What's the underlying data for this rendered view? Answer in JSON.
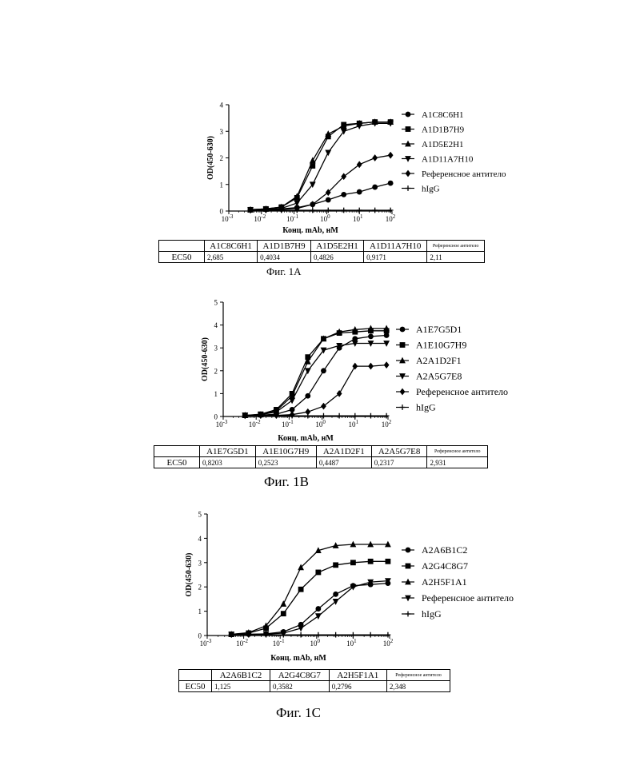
{
  "figures": [
    {
      "caption": "Фиг. 1A",
      "table": {
        "row_label": "EC50",
        "columns": [
          "A1C8C6H1",
          "A1D1B7H9",
          "A1D5E2H1",
          "A1D11A7H10",
          "Референсное антитело"
        ],
        "values": [
          "2,685",
          "0,4034",
          "0,4826",
          "0,9171",
          "2,11"
        ]
      }
    },
    {
      "caption": "Фиг. 1B",
      "table": {
        "row_label": "EC50",
        "columns": [
          "A1E7G5D1",
          "A1E10G7H9",
          "A2A1D2F1",
          "A2A5G7E8",
          "Референсное антитело"
        ],
        "values": [
          "0,8203",
          "0,2523",
          "0,4487",
          "0,2317",
          "2,931"
        ]
      }
    },
    {
      "caption": "Фиг. 1C",
      "table": {
        "row_label": "EC50",
        "columns": [
          "A2A6B1C2",
          "A2G4C8G7",
          "A2H5F1A1",
          "Референсное антитело"
        ],
        "values": [
          "1,125",
          "0,3582",
          "0,2796",
          "2,348"
        ]
      }
    }
  ],
  "chart_data": [
    {
      "type": "scatter",
      "xlabel": "Конц. mAb, нМ",
      "ylabel": "OD(450-630)",
      "xscale": "log",
      "xlim": [
        0.001,
        100
      ],
      "ylim": [
        0,
        4
      ],
      "x_ticks": [
        "10",
        "10",
        "10",
        "10",
        "10",
        "10"
      ],
      "x_tick_exponents": [
        "-3",
        "-2",
        "-1",
        "0",
        "1",
        "2"
      ],
      "y_ticks": [
        "0",
        "1",
        "2",
        "3",
        "4"
      ],
      "legend": "right",
      "x": [
        0.0046,
        0.0137,
        0.041,
        0.123,
        0.37,
        1.11,
        3.33,
        10,
        30,
        90
      ],
      "series": [
        {
          "name": "A1C8C6H1",
          "marker": "circle",
          "values": [
            0.05,
            0.06,
            0.08,
            0.13,
            0.25,
            0.42,
            0.62,
            0.72,
            0.9,
            1.05
          ]
        },
        {
          "name": "A1D1B7H9",
          "marker": "square",
          "values": [
            0.05,
            0.08,
            0.15,
            0.5,
            1.7,
            2.8,
            3.25,
            3.3,
            3.35,
            3.35
          ]
        },
        {
          "name": "A1D5E2H1",
          "marker": "triangle-up",
          "values": [
            0.05,
            0.08,
            0.15,
            0.55,
            1.9,
            2.9,
            3.2,
            3.3,
            3.35,
            3.35
          ]
        },
        {
          "name": "A1D11A7H10",
          "marker": "triangle-down",
          "values": [
            0.04,
            0.06,
            0.1,
            0.3,
            1.0,
            2.2,
            3.0,
            3.2,
            3.3,
            3.3
          ]
        },
        {
          "name": "Референсное антитело",
          "marker": "diamond",
          "values": [
            0.04,
            0.05,
            0.06,
            0.1,
            0.25,
            0.7,
            1.3,
            1.75,
            2.0,
            2.1
          ]
        },
        {
          "name": "hIgG",
          "marker": "plus",
          "values": [
            0.03,
            0.03,
            0.03,
            0.03,
            0.03,
            0.03,
            0.03,
            0.03,
            0.03,
            0.03
          ]
        }
      ]
    },
    {
      "type": "scatter",
      "xlabel": "Конц. mAb, нМ",
      "ylabel": "OD(450-630)",
      "xscale": "log",
      "xlim": [
        0.001,
        100
      ],
      "ylim": [
        0,
        5
      ],
      "x_ticks": [
        "10",
        "10",
        "10",
        "10",
        "10",
        "10"
      ],
      "x_tick_exponents": [
        "-3",
        "-2",
        "-1",
        "0",
        "1",
        "2"
      ],
      "y_ticks": [
        "0",
        "1",
        "2",
        "3",
        "4",
        "5"
      ],
      "legend": "right",
      "x": [
        0.0046,
        0.0137,
        0.041,
        0.123,
        0.37,
        1.11,
        3.33,
        10,
        30,
        90
      ],
      "series": [
        {
          "name": "A1E7G5D1",
          "marker": "circle",
          "values": [
            0.05,
            0.06,
            0.1,
            0.3,
            0.9,
            2.0,
            3.0,
            3.4,
            3.5,
            3.55
          ]
        },
        {
          "name": "A1E10G7H9",
          "marker": "square",
          "values": [
            0.05,
            0.1,
            0.3,
            1.0,
            2.6,
            3.4,
            3.65,
            3.7,
            3.75,
            3.75
          ]
        },
        {
          "name": "A2A1D2F1",
          "marker": "triangle-up",
          "values": [
            0.05,
            0.08,
            0.25,
            0.9,
            2.4,
            3.4,
            3.7,
            3.8,
            3.85,
            3.85
          ]
        },
        {
          "name": "A2A5G7E8",
          "marker": "triangle-down",
          "values": [
            0.05,
            0.08,
            0.2,
            0.7,
            2.0,
            2.9,
            3.1,
            3.2,
            3.2,
            3.2
          ]
        },
        {
          "name": "Референсное антитело",
          "marker": "diamond",
          "values": [
            0.04,
            0.05,
            0.05,
            0.08,
            0.2,
            0.45,
            1.0,
            2.2,
            2.2,
            2.25
          ]
        },
        {
          "name": "hIgG",
          "marker": "plus",
          "values": [
            0.03,
            0.03,
            0.03,
            0.03,
            0.03,
            0.03,
            0.03,
            0.03,
            0.03,
            0.03
          ]
        }
      ]
    },
    {
      "type": "scatter",
      "xlabel": "Конц. mAb, нМ",
      "ylabel": "OD(450-630)",
      "xscale": "log",
      "xlim": [
        0.001,
        100
      ],
      "ylim": [
        0,
        5
      ],
      "x_ticks": [
        "10",
        "10",
        "10",
        "10",
        "10",
        "10"
      ],
      "x_tick_exponents": [
        "-3",
        "-2",
        "-1",
        "0",
        "1",
        "2"
      ],
      "y_ticks": [
        "0",
        "1",
        "2",
        "3",
        "4",
        "5"
      ],
      "legend": "right",
      "x": [
        0.0046,
        0.0137,
        0.041,
        0.123,
        0.37,
        1.11,
        3.33,
        10,
        30,
        90
      ],
      "series": [
        {
          "name": "A2A6B1C2",
          "marker": "circle",
          "values": [
            0.04,
            0.05,
            0.07,
            0.15,
            0.45,
            1.1,
            1.7,
            2.05,
            2.1,
            2.15
          ]
        },
        {
          "name": "A2G4C8G7",
          "marker": "square",
          "values": [
            0.05,
            0.1,
            0.3,
            0.9,
            1.9,
            2.6,
            2.9,
            3.0,
            3.05,
            3.05
          ]
        },
        {
          "name": "A2H5F1A1",
          "marker": "triangle-up",
          "values": [
            0.05,
            0.12,
            0.4,
            1.3,
            2.8,
            3.5,
            3.7,
            3.75,
            3.75,
            3.75
          ]
        },
        {
          "name": "Референсное антитело",
          "marker": "triangle-down",
          "values": [
            0.04,
            0.05,
            0.06,
            0.1,
            0.3,
            0.8,
            1.4,
            2.0,
            2.2,
            2.25
          ]
        },
        {
          "name": "hIgG",
          "marker": "plus",
          "values": [
            0.03,
            0.03,
            0.03,
            0.03,
            0.03,
            0.03,
            0.03,
            0.03,
            0.03,
            0.03
          ]
        }
      ]
    }
  ]
}
